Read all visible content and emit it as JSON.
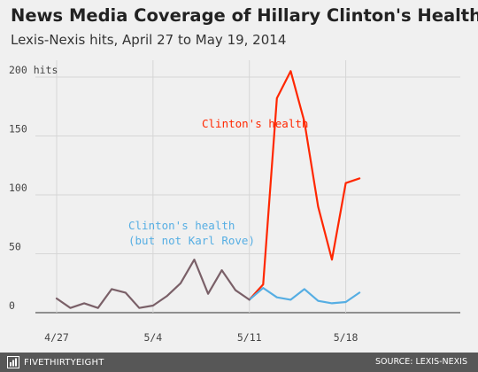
{
  "header": {
    "title": "News Media Coverage of Hillary Clinton's Health",
    "subtitle": "Lexis-Nexis hits, April 27 to May 19, 2014"
  },
  "footer": {
    "brand": "FIVETHIRTYEIGHT",
    "source": "SOURCE: LEXIS-NEXIS"
  },
  "chart_data": {
    "type": "line",
    "title": "News Media Coverage of Hillary Clinton's Health",
    "subtitle": "Lexis-Nexis hits, April 27 to May 19, 2014",
    "x": [
      "2014-04-27",
      "2014-04-28",
      "2014-04-29",
      "2014-04-30",
      "2014-05-01",
      "2014-05-02",
      "2014-05-03",
      "2014-05-04",
      "2014-05-05",
      "2014-05-06",
      "2014-05-07",
      "2014-05-08",
      "2014-05-09",
      "2014-05-10",
      "2014-05-11",
      "2014-05-12",
      "2014-05-13",
      "2014-05-14",
      "2014-05-15",
      "2014-05-16",
      "2014-05-17",
      "2014-05-18",
      "2014-05-19"
    ],
    "x_ticks": [
      {
        "label": "4/27",
        "x": "2014-04-27"
      },
      {
        "label": "5/4",
        "x": "2014-05-04"
      },
      {
        "label": "5/11",
        "x": "2014-05-11"
      },
      {
        "label": "5/18",
        "x": "2014-05-18"
      }
    ],
    "y_ticks": [
      {
        "value": 0,
        "label": "0"
      },
      {
        "value": 50,
        "label": "50"
      },
      {
        "value": 100,
        "label": "100"
      },
      {
        "value": 150,
        "label": "150"
      },
      {
        "value": 200,
        "label": "200 hits"
      }
    ],
    "ylim": [
      0,
      210
    ],
    "grid": true,
    "legend": "inline labels",
    "series": [
      {
        "name": "Clinton's health",
        "color": "#ff2700",
        "values": [
          12,
          4,
          8,
          4,
          20,
          17,
          4,
          6,
          14,
          25,
          45,
          16,
          36,
          19,
          11,
          24,
          182,
          205,
          162,
          90,
          45,
          110,
          114
        ]
      },
      {
        "name": "Clinton's health (but not Karl Rove)",
        "label_lines": [
          "Clinton's health",
          "(but not Karl Rove)"
        ],
        "color": "#56aee3",
        "values": [
          12,
          4,
          8,
          4,
          20,
          17,
          4,
          6,
          14,
          25,
          45,
          16,
          36,
          19,
          11,
          21,
          13,
          11,
          20,
          10,
          8,
          9,
          17
        ]
      }
    ],
    "overlap_color": "#7a6068"
  }
}
